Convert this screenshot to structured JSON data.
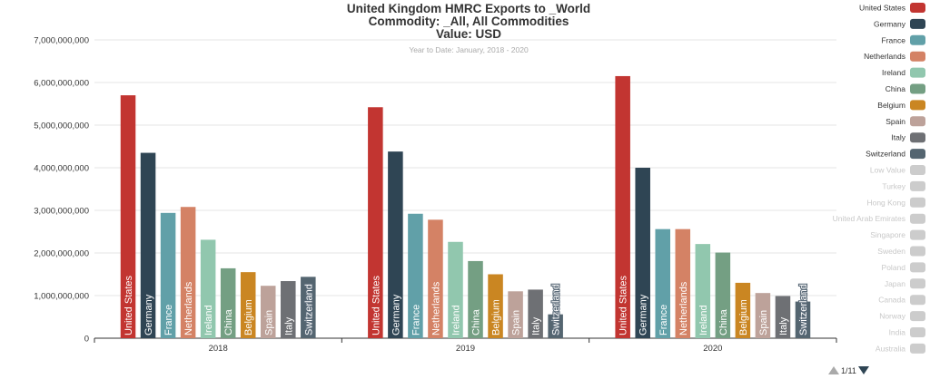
{
  "chart_data": {
    "type": "bar",
    "title": "United Kingdom HMRC Exports to _World",
    "title_line2": "Commodity: _All, All Commodities",
    "title_line3": "Value: USD",
    "subtitle": "Year to Date: January, 2018 - 2020",
    "xlabel": "",
    "ylabel": "",
    "categories": [
      "2018",
      "2019",
      "2020"
    ],
    "ylim": [
      0,
      7000000000
    ],
    "yticks": [
      "0",
      "1,000,000,000",
      "2,000,000,000",
      "3,000,000,000",
      "4,000,000,000",
      "5,000,000,000",
      "6,000,000,000",
      "7,000,000,000"
    ],
    "grid": true,
    "legend_position": "right",
    "series": [
      {
        "name": "United States",
        "color": "#c23531",
        "values": [
          5700000000,
          5420000000,
          6150000000
        ]
      },
      {
        "name": "Germany",
        "color": "#2f4554",
        "values": [
          4350000000,
          4380000000,
          4000000000
        ]
      },
      {
        "name": "France",
        "color": "#61a0a8",
        "values": [
          2940000000,
          2920000000,
          2560000000
        ]
      },
      {
        "name": "Netherlands",
        "color": "#d48265",
        "values": [
          3080000000,
          2780000000,
          2560000000
        ]
      },
      {
        "name": "Ireland",
        "color": "#91c7ae",
        "values": [
          2310000000,
          2260000000,
          2210000000
        ]
      },
      {
        "name": "China",
        "color": "#749f83",
        "values": [
          1640000000,
          1810000000,
          2010000000
        ]
      },
      {
        "name": "Belgium",
        "color": "#ca8622",
        "values": [
          1550000000,
          1500000000,
          1300000000
        ]
      },
      {
        "name": "Spain",
        "color": "#bda29a",
        "values": [
          1230000000,
          1100000000,
          1060000000
        ]
      },
      {
        "name": "Italy",
        "color": "#6e7074",
        "values": [
          1340000000,
          1140000000,
          990000000
        ]
      },
      {
        "name": "Switzerland",
        "color": "#546570",
        "values": [
          1440000000,
          560000000,
          860000000
        ]
      }
    ],
    "legend_inactive": [
      "Low Value",
      "Turkey",
      "Hong Kong",
      "United Arab Emirates",
      "Singapore",
      "Sweden",
      "Poland",
      "Japan",
      "Canada",
      "Norway",
      "India",
      "Australia"
    ],
    "legend_inactive_color": "#cccccc",
    "legend_page": "1/11"
  }
}
